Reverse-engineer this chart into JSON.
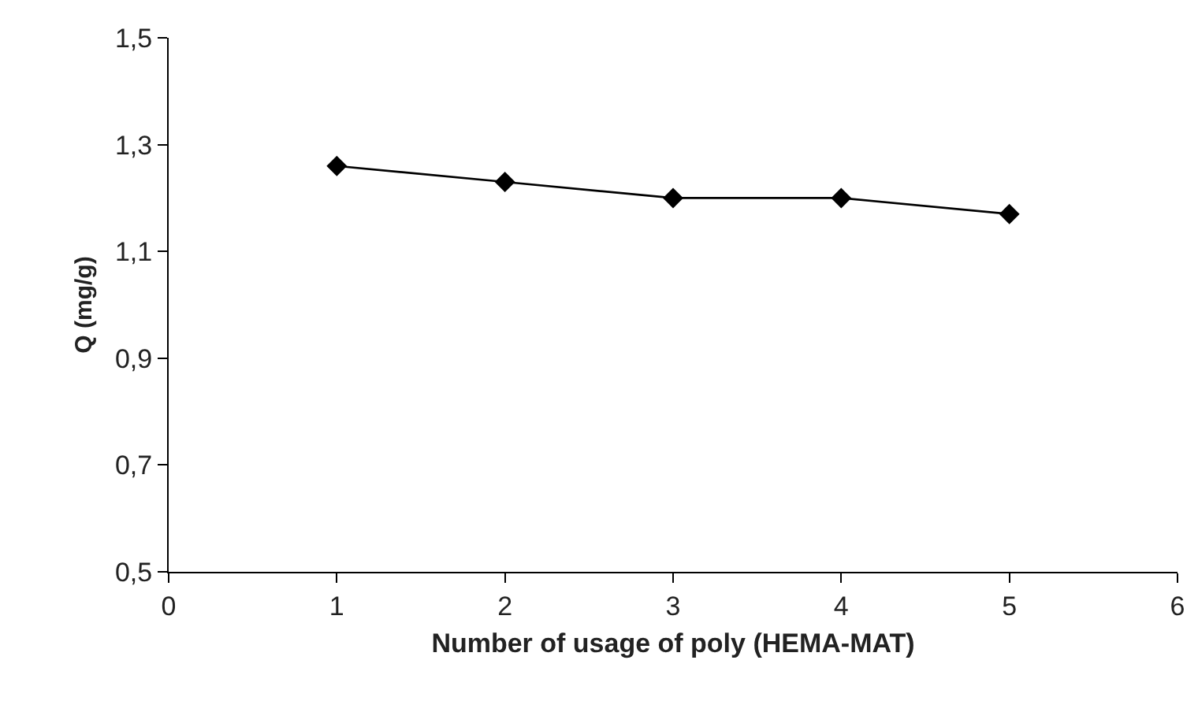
{
  "chart_data": {
    "type": "line",
    "xlabel": "Number of usage of poly (HEMA-MAT)",
    "ylabel": "Q (mg/g)",
    "x": [
      1,
      2,
      3,
      4,
      5
    ],
    "series": [
      {
        "color": "#000000",
        "values": [
          1.26,
          1.23,
          1.2,
          1.2,
          1.17
        ]
      }
    ],
    "xlim": [
      0,
      6
    ],
    "xticks": [
      0,
      1,
      2,
      3,
      4,
      5,
      6
    ],
    "ylim": [
      0.5,
      1.5
    ],
    "yticks": [
      {
        "value": 0.5,
        "label": "0,5"
      },
      {
        "value": 0.7,
        "label": "0,7"
      },
      {
        "value": 0.9,
        "label": "0,9"
      },
      {
        "value": 1.1,
        "label": "1,1"
      },
      {
        "value": 1.3,
        "label": "1,3"
      },
      {
        "value": 1.5,
        "label": "1,5"
      }
    ],
    "grid": false,
    "marker": "diamond",
    "line_style": "solid"
  }
}
